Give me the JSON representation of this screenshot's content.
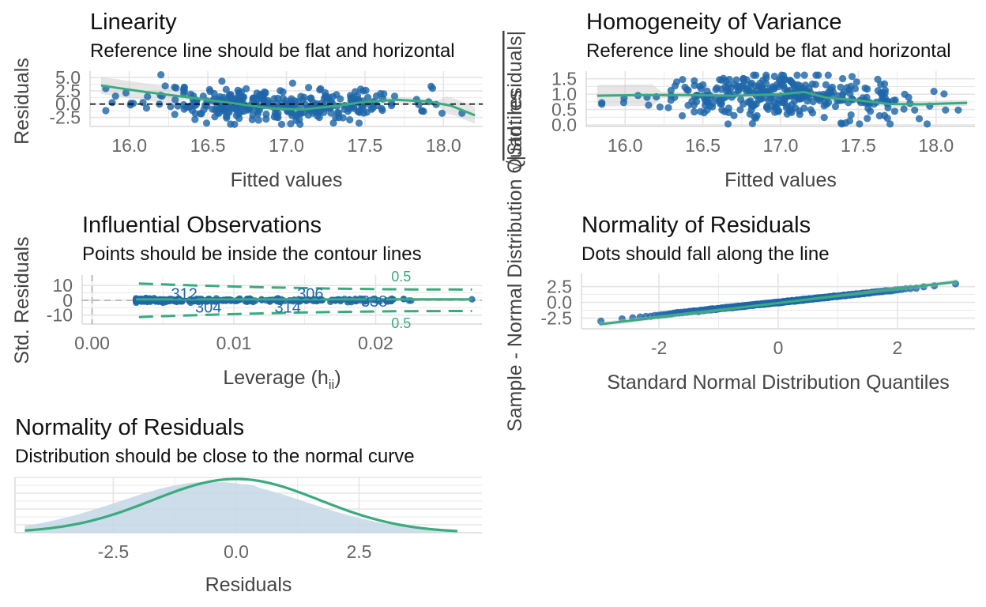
{
  "colors": {
    "points": "#1f66a8",
    "line": "#3aaa7f",
    "ribbon": "#c8c8c8",
    "grid": "#e5e5e5",
    "density_fill": "#c6d7e6"
  },
  "chart_data": [
    {
      "id": "linearity",
      "type": "scatter",
      "title": "Linearity",
      "subtitle": "Reference line should be flat and horizontal",
      "xlabel": "Fitted values",
      "ylabel": "Residuals",
      "xlim": [
        15.75,
        18.25
      ],
      "ylim": [
        -4.2,
        6.2
      ],
      "xticks": [
        "16.0",
        "16.5",
        "17.0",
        "17.5",
        "18.0"
      ],
      "xtick_values": [
        16.0,
        16.5,
        17.0,
        17.5,
        18.0
      ],
      "yticks": [
        "-2.5",
        "0.0",
        "2.5",
        "5.0"
      ],
      "ytick_values": [
        -2.5,
        0.0,
        2.5,
        5.0
      ],
      "reference_line": 0,
      "smooth": {
        "x": [
          15.82,
          16.1,
          16.4,
          16.7,
          16.9,
          17.1,
          17.3,
          17.5,
          17.7,
          17.9,
          18.05,
          18.2
        ],
        "y": [
          3.5,
          2.3,
          1.2,
          0.0,
          -0.8,
          -1.0,
          -0.4,
          0.4,
          0.8,
          0.5,
          -0.3,
          -2.1
        ]
      },
      "grid": true
    },
    {
      "id": "homogeneity",
      "type": "scatter",
      "title": "Homogeneity of Variance",
      "subtitle": "Reference line should be flat and horizontal",
      "xlabel": "Fitted values",
      "ylabel": "|Std. residuals|",
      "ylabel_prefix": "√",
      "xlim": [
        15.75,
        18.25
      ],
      "ylim": [
        -0.05,
        1.75
      ],
      "xticks": [
        "16.0",
        "16.5",
        "17.0",
        "17.5",
        "18.0"
      ],
      "xtick_values": [
        16.0,
        16.5,
        17.0,
        17.5,
        18.0
      ],
      "yticks": [
        "0.0",
        "0.5",
        "1.0",
        "1.5"
      ],
      "ytick_values": [
        0.0,
        0.5,
        1.0,
        1.5
      ],
      "smooth": {
        "x": [
          15.82,
          16.1,
          16.4,
          16.7,
          17.0,
          17.15,
          17.3,
          17.5,
          17.7,
          17.9,
          18.2
        ],
        "y": [
          0.95,
          0.97,
          0.97,
          0.95,
          1.0,
          1.07,
          0.88,
          0.8,
          0.68,
          0.67,
          0.72
        ]
      },
      "grid": true
    },
    {
      "id": "influential",
      "type": "scatter",
      "title": "Influential Observations",
      "subtitle": "Points should be inside the contour lines",
      "xlabel": "Leverage (h",
      "xlabel_subscript": "ii",
      "xlabel_suffix": ")",
      "ylabel": "Std. Residuals",
      "xlim": [
        -0.0007,
        0.0275
      ],
      "ylim": [
        -16,
        17
      ],
      "xticks": [
        "0.00",
        "0.01",
        "0.02"
      ],
      "xtick_values": [
        0.0,
        0.01,
        0.02
      ],
      "yticks": [
        "-10",
        "0",
        "10"
      ],
      "ytick_values": [
        -10,
        0,
        10
      ],
      "point_labels": [
        {
          "label": "312",
          "x": 0.0065,
          "y": 4.0
        },
        {
          "label": "306",
          "x": 0.0154,
          "y": 4.0
        },
        {
          "label": "338",
          "x": 0.0199,
          "y": -1.0
        },
        {
          "label": "304",
          "x": 0.0082,
          "y": -5.0
        },
        {
          "label": "314",
          "x": 0.0138,
          "y": -5.0
        }
      ],
      "contour_labels": [
        {
          "label": "0.5",
          "x": 0.0218,
          "y": 16.0
        },
        {
          "label": "0.5",
          "x": 0.0218,
          "y": -15.5
        }
      ],
      "grid": true
    },
    {
      "id": "qq",
      "type": "scatter",
      "title": "Normality of Residuals",
      "subtitle": "Dots should fall along the line",
      "xlabel": "Standard Normal Distribution Quantiles",
      "ylabel": "Sample - Normal Distribution Quantiles",
      "xlim": [
        -3.3,
        3.3
      ],
      "ylim": [
        -4.2,
        4.6
      ],
      "xticks": [
        "-2",
        "0",
        "2"
      ],
      "xtick_values": [
        -2,
        0,
        2
      ],
      "yticks": [
        "-2.5",
        "0.0",
        "2.5"
      ],
      "ytick_values": [
        -2.5,
        0.0,
        2.5
      ],
      "reference_line": {
        "x": [
          -3.0,
          3.0
        ],
        "y": [
          -3.5,
          3.3
        ]
      },
      "grid": true
    },
    {
      "id": "density",
      "type": "area",
      "title": "Normality of Residuals",
      "subtitle": "Distribution should be close to the normal curve",
      "xlabel": "Residuals",
      "ylabel": "",
      "xlim": [
        -4.5,
        5.0
      ],
      "xticks": [
        "-2.5",
        "0.0",
        "2.5"
      ],
      "xtick_values": [
        -2.5,
        0.0,
        2.5
      ],
      "normal_sd": 1.7,
      "grid": true
    }
  ]
}
